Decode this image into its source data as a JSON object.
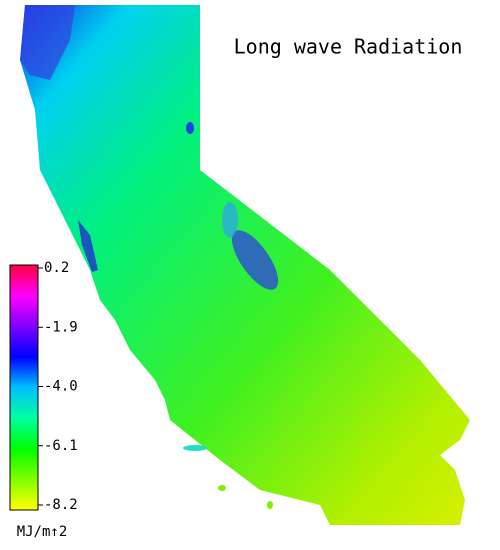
{
  "title": "Long wave Radiation",
  "colorbar": {
    "lim": [
      -8.2,
      0.2
    ],
    "ticks": [
      0.2,
      -1.9,
      {
        "value": -4,
        "label": "-4.0"
      },
      -6.1,
      -8.2
    ],
    "unit": "MJ/m↑2",
    "colors": [
      "#ff0040",
      "#ff00ff",
      "#8000ff",
      "#0000ff",
      "#00c0ff",
      "#00ffa0",
      "#00ff00",
      "#80ff00",
      "#ffff00"
    ]
  }
}
